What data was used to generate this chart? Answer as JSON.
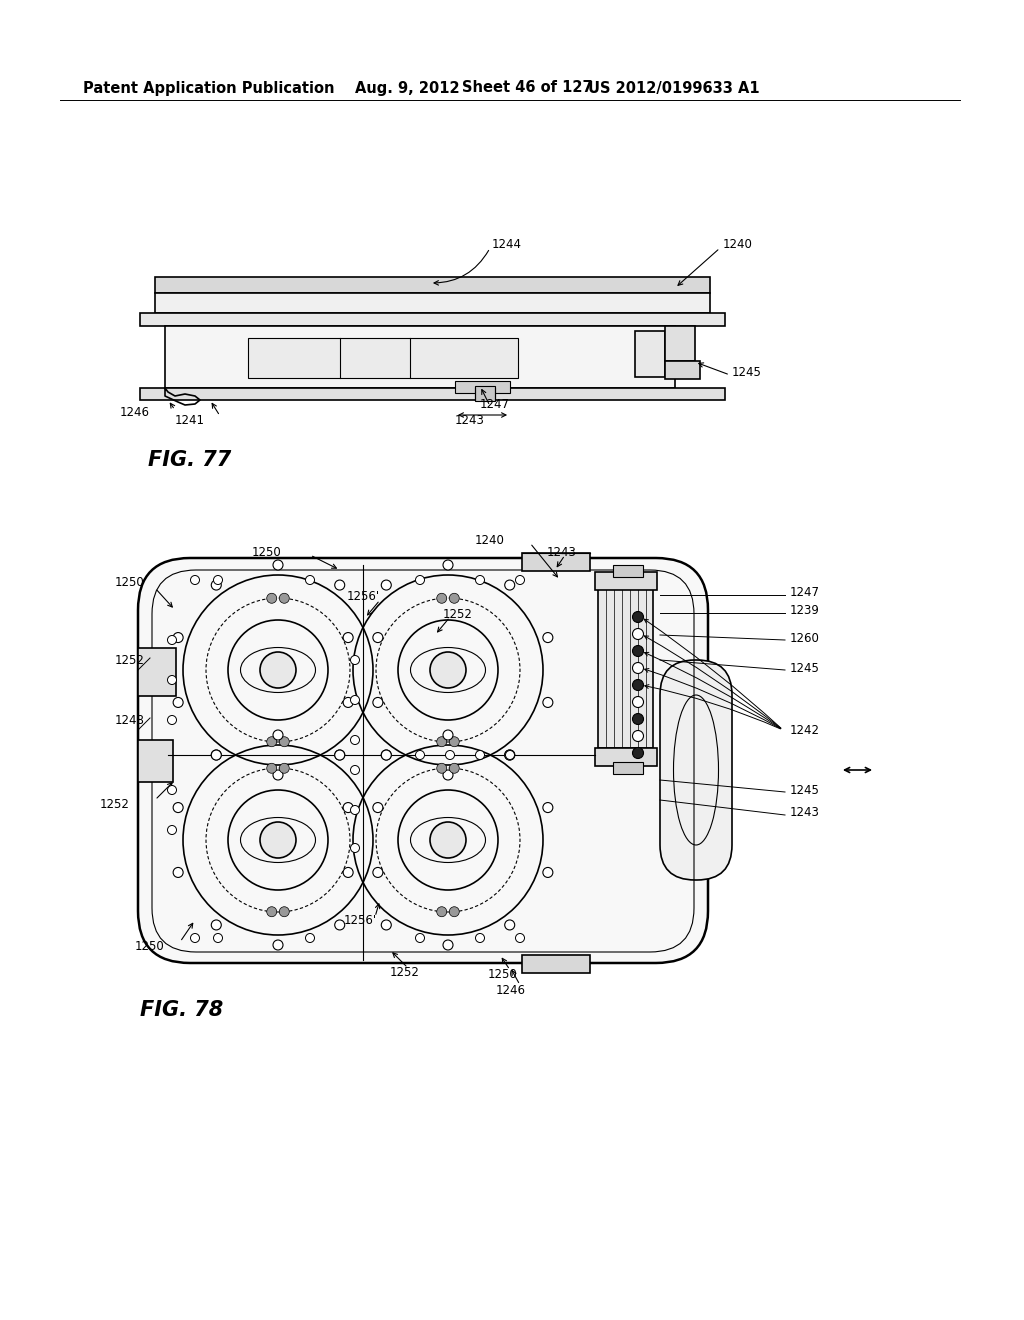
{
  "bg_color": "#ffffff",
  "line_color": "#000000",
  "header_text": "Patent Application Publication",
  "header_date": "Aug. 9, 2012",
  "header_sheet": "Sheet 46 of 127",
  "header_patent": "US 2012/0199633 A1",
  "fig77_label": "FIG. 77",
  "fig78_label": "FIG. 78",
  "font_size_header": 10.5,
  "font_size_fig": 15,
  "font_size_label": 8.5
}
